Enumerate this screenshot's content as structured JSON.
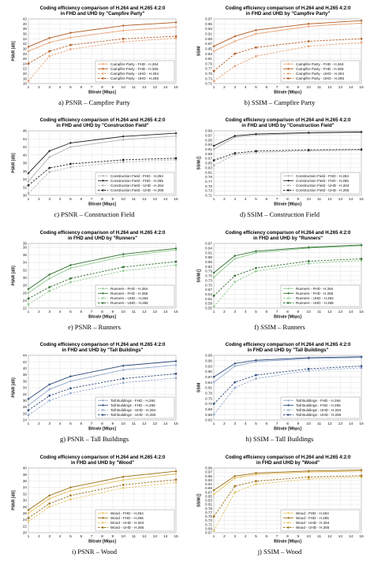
{
  "chart_data": [
    {
      "type": "line",
      "title": "Coding efficiency comparison of H.264 and H.265 4:2:0 in FHD and UHD by \"Campfire Party\"",
      "xlabel": "Bitrate [Mbps]",
      "ylabel": "PSNR [dB]",
      "xlim": [
        1,
        15
      ],
      "ylim": [
        16,
        42
      ],
      "yticks": [
        16,
        18,
        20,
        22,
        24,
        26,
        28,
        30,
        32,
        34,
        36,
        38,
        40,
        42
      ],
      "xticks": [
        1,
        2,
        3,
        4,
        5,
        6,
        7,
        8,
        9,
        10,
        11,
        12,
        13,
        14,
        15
      ],
      "grid": true,
      "legend": "bottom-right",
      "caption": "a) PSNR – Campfire Party",
      "x": [
        1,
        3,
        5,
        10,
        15
      ],
      "series": [
        {
          "name": "Campfire Party - FHD - H.264",
          "values": [
            29.0,
            32.5,
            34.5,
            37.3,
            38.7
          ],
          "color": "#e8a070",
          "dash": false
        },
        {
          "name": "Campfire Party - FHD - H.265",
          "values": [
            30.8,
            34.3,
            36.4,
            39.3,
            40.6
          ],
          "color": "#b35a1f",
          "dash": false
        },
        {
          "name": "Campfire Party - UHD - H.264",
          "values": [
            17.0,
            27.0,
            29.8,
            32.8,
            34.2
          ],
          "color": "#e8a070",
          "dash": true
        },
        {
          "name": "Campfire Party - UHD - H.265",
          "values": [
            24.0,
            29.0,
            31.5,
            34.0,
            35.0
          ],
          "color": "#b35a1f",
          "dash": true
        }
      ]
    },
    {
      "type": "line",
      "title": "Coding efficiency comparison of H.264 and H.265 4:2:0 in FHD and UHD by \"Campfire Party\"",
      "xlabel": "Bitrate [Mbps]",
      "ylabel": "SSIM",
      "xlim": [
        1,
        15
      ],
      "ylim": [
        0.71,
        0.97
      ],
      "yticks": [
        0.71,
        0.73,
        0.75,
        0.77,
        0.79,
        0.81,
        0.83,
        0.85,
        0.87,
        0.89,
        0.91,
        0.93,
        0.95,
        0.97
      ],
      "xticks": [
        1,
        2,
        3,
        4,
        5,
        6,
        7,
        8,
        9,
        10,
        11,
        12,
        13,
        14,
        15
      ],
      "grid": true,
      "legend": "bottom-right",
      "caption": "b) SSIM – Campfire Party",
      "x": [
        1,
        3,
        5,
        10,
        15
      ],
      "series": [
        {
          "name": "Campfire Party - FHD - H.264",
          "values": [
            0.84,
            0.88,
            0.91,
            0.94,
            0.953
          ],
          "color": "#e8a070",
          "dash": false
        },
        {
          "name": "Campfire Party - FHD - H.265",
          "values": [
            0.86,
            0.9,
            0.925,
            0.95,
            0.963
          ],
          "color": "#b35a1f",
          "dash": false
        },
        {
          "name": "Campfire Party - UHD - H.264",
          "values": [
            0.72,
            0.78,
            0.82,
            0.86,
            0.875
          ],
          "color": "#e8a070",
          "dash": true
        },
        {
          "name": "Campfire Party - UHD - H.265",
          "values": [
            0.76,
            0.83,
            0.855,
            0.88,
            0.89
          ],
          "color": "#b35a1f",
          "dash": true
        }
      ]
    },
    {
      "type": "line",
      "title": "Coding efficiency comparison of H.264 and H.265 4:2:0 in FHD and UHD by \"Construction Field\"",
      "xlabel": "Bitrate [Mbps]",
      "ylabel": "PSNR [dB]",
      "xlim": [
        1,
        15
      ],
      "ylim": [
        30,
        46
      ],
      "yticks": [
        30,
        32,
        34,
        36,
        38,
        40,
        42,
        44,
        46
      ],
      "xticks": [
        1,
        2,
        3,
        4,
        5,
        6,
        7,
        8,
        9,
        10,
        11,
        12,
        13,
        14,
        15
      ],
      "grid": true,
      "legend": "bottom-right",
      "caption": "c) PSNR – Construction Field",
      "x": [
        1,
        3,
        5,
        10,
        15
      ],
      "series": [
        {
          "name": "Construction Field - FHD - H.264",
          "values": [
            33.5,
            39.5,
            42.0,
            43.8,
            44.7
          ],
          "color": "#b0b0b0",
          "dash": false
        },
        {
          "name": "Construction Field - FHD - H.265",
          "values": [
            35.5,
            41.0,
            43.0,
            44.6,
            45.4
          ],
          "color": "#202020",
          "dash": false
        },
        {
          "name": "Construction Field - UHD - H.264",
          "values": [
            30.5,
            35.8,
            37.0,
            38.3,
            38.8
          ],
          "color": "#b0b0b0",
          "dash": true
        },
        {
          "name": "Construction Field - UHD - H.265",
          "values": [
            32.5,
            36.8,
            37.8,
            38.8,
            39.2
          ],
          "color": "#202020",
          "dash": true
        }
      ]
    },
    {
      "type": "line",
      "title": "Coding efficiency comparison of H.264 and H.265 4:2:0 in FHD and UHD by \"Construction Field\"",
      "xlabel": "Bitrate [Mbps]",
      "ylabel": "SSIM []",
      "xlim": [
        1,
        15
      ],
      "ylim": [
        0.71,
        0.99
      ],
      "yticks": [
        0.71,
        0.73,
        0.75,
        0.77,
        0.79,
        0.81,
        0.83,
        0.85,
        0.87,
        0.89,
        0.91,
        0.93,
        0.95,
        0.97,
        0.99
      ],
      "xticks": [
        1,
        2,
        3,
        4,
        5,
        6,
        7,
        8,
        9,
        10,
        11,
        12,
        13,
        14,
        15
      ],
      "grid": true,
      "legend": "bottom-right",
      "caption": "d) SSIM – Construction Field",
      "x": [
        1,
        3,
        5,
        10,
        15
      ],
      "series": [
        {
          "name": "Construction Field - FHD - H.264",
          "values": [
            0.91,
            0.962,
            0.972,
            0.979,
            0.982
          ],
          "color": "#b0b0b0",
          "dash": false
        },
        {
          "name": "Construction Field - FHD - H.265",
          "values": [
            0.925,
            0.968,
            0.976,
            0.982,
            0.985
          ],
          "color": "#202020",
          "dash": false
        },
        {
          "name": "Construction Field - UHD - H.264",
          "values": [
            0.84,
            0.886,
            0.896,
            0.903,
            0.906
          ],
          "color": "#b0b0b0",
          "dash": true
        },
        {
          "name": "Construction Field - UHD - H.265",
          "values": [
            0.862,
            0.893,
            0.902,
            0.907,
            0.909
          ],
          "color": "#202020",
          "dash": true
        }
      ]
    },
    {
      "type": "line",
      "title": "Coding efficiency comparison of H.264 and H.265 4:2:0 in FHD and UHD by \"Runners\"",
      "xlabel": "Bitrate [Mbps]",
      "ylabel": "PSNR [dB]",
      "xlim": [
        1,
        15
      ],
      "ylim": [
        22,
        39
      ],
      "yticks": [
        22,
        24,
        26,
        28,
        30,
        32,
        34,
        36,
        38,
        39
      ],
      "xticks": [
        1,
        2,
        3,
        4,
        5,
        6,
        7,
        8,
        9,
        10,
        11,
        12,
        13,
        14,
        15
      ],
      "grid": true,
      "legend": "bottom-right",
      "caption": "e) PSNR – Runners",
      "x": [
        1,
        3,
        5,
        10,
        15
      ],
      "series": [
        {
          "name": "Runners - FHD - H.264",
          "values": [
            26.0,
            29.8,
            32.5,
            35.6,
            37.3
          ],
          "color": "#8cc98c",
          "dash": false
        },
        {
          "name": "Runners - FHD - H.265",
          "values": [
            27.0,
            30.8,
            33.3,
            36.2,
            37.7
          ],
          "color": "#2f6e2f",
          "dash": false
        },
        {
          "name": "Runners - UHD - H.264",
          "values": [
            23.0,
            26.5,
            28.8,
            31.8,
            33.3
          ],
          "color": "#8cc98c",
          "dash": true
        },
        {
          "name": "Runners - UHD - H.265",
          "values": [
            24.5,
            27.5,
            29.8,
            32.8,
            34.2
          ],
          "color": "#2f6e2f",
          "dash": true
        }
      ]
    },
    {
      "type": "line",
      "title": "Coding efficiency comparison of H.264 and H.265 4:2:0 in FHD and UHD by \"Runners\"",
      "xlabel": "Bitrate [Mbps]",
      "ylabel": "SSIM []",
      "xlim": [
        1,
        15
      ],
      "ylim": [
        0.55,
        0.97
      ],
      "yticks": [
        0.55,
        0.58,
        0.61,
        0.64,
        0.67,
        0.7,
        0.73,
        0.76,
        0.79,
        0.82,
        0.85,
        0.88,
        0.91,
        0.94,
        0.97
      ],
      "xticks": [
        1,
        2,
        3,
        4,
        5,
        6,
        7,
        8,
        9,
        10,
        11,
        12,
        13,
        14,
        15
      ],
      "grid": true,
      "legend": "bottom-right",
      "caption": "f) SSIM – Runners",
      "x": [
        1,
        3,
        5,
        10,
        15
      ],
      "series": [
        {
          "name": "Runners - FHD - H.264",
          "values": [
            0.75,
            0.87,
            0.91,
            0.94,
            0.955
          ],
          "color": "#8cc98c",
          "dash": false
        },
        {
          "name": "Runners - FHD - H.265",
          "values": [
            0.78,
            0.89,
            0.92,
            0.945,
            0.96
          ],
          "color": "#2f6e2f",
          "dash": false
        },
        {
          "name": "Runners - UHD - H.264",
          "values": [
            0.56,
            0.72,
            0.79,
            0.84,
            0.86
          ],
          "color": "#8cc98c",
          "dash": true
        },
        {
          "name": "Runners - UHD - H.265",
          "values": [
            0.63,
            0.76,
            0.81,
            0.855,
            0.87
          ],
          "color": "#2f6e2f",
          "dash": true
        }
      ]
    },
    {
      "type": "line",
      "title": "Coding efficiency comparison of H.264 and H.265 4:2:0 in FHD and UHD by \"Tall Buildings\"",
      "xlabel": "Bitrate [Mbps]",
      "ylabel": "PSNR [dB]",
      "xlim": [
        1,
        15
      ],
      "ylim": [
        24,
        44
      ],
      "yticks": [
        24,
        26,
        28,
        30,
        32,
        34,
        36,
        38,
        40,
        42,
        44
      ],
      "xticks": [
        1,
        2,
        3,
        4,
        5,
        6,
        7,
        8,
        9,
        10,
        11,
        12,
        13,
        14,
        15
      ],
      "grid": true,
      "legend": "bottom-right",
      "caption": "g) PSNR – Tall Buildings",
      "x": [
        1,
        3,
        5,
        10,
        15
      ],
      "series": [
        {
          "name": "Tall Buildings - FHD - H.264",
          "values": [
            28.5,
            33.5,
            36.0,
            39.5,
            41.0
          ],
          "color": "#8fa8cc",
          "dash": false
        },
        {
          "name": "Tall Buildings - FHD - H.265",
          "values": [
            30.5,
            35.0,
            37.5,
            40.8,
            42.2
          ],
          "color": "#2c4a7a",
          "dash": false
        },
        {
          "name": "Tall Buildings - UHD - H.264",
          "values": [
            25.5,
            30.0,
            32.3,
            35.5,
            37.0
          ],
          "color": "#8fa8cc",
          "dash": true
        },
        {
          "name": "Tall Buildings - UHD - H.265",
          "values": [
            27.0,
            31.5,
            33.8,
            36.8,
            38.3
          ],
          "color": "#2c4a7a",
          "dash": true
        }
      ]
    },
    {
      "type": "line",
      "title": "Coding efficiency comparison of H.264 and H.265 4:2:0 in FHD and UHD by \"Tall Buildings\"",
      "xlabel": "Bitrate [Mbps]",
      "ylabel": "SSIM",
      "xlim": [
        1,
        15
      ],
      "ylim": [
        0.63,
        0.99
      ],
      "yticks": [
        0.63,
        0.66,
        0.69,
        0.72,
        0.75,
        0.78,
        0.81,
        0.84,
        0.87,
        0.9,
        0.93,
        0.96,
        0.99
      ],
      "xticks": [
        1,
        2,
        3,
        4,
        5,
        6,
        7,
        8,
        9,
        10,
        11,
        12,
        13,
        14,
        15
      ],
      "grid": true,
      "legend": "bottom-right",
      "caption": "h) SSIM – Tall Buildings",
      "x": [
        1,
        3,
        5,
        10,
        15
      ],
      "series": [
        {
          "name": "Tall Buildings - FHD - H.264",
          "values": [
            0.84,
            0.93,
            0.955,
            0.972,
            0.978
          ],
          "color": "#8fa8cc",
          "dash": false
        },
        {
          "name": "Tall Buildings - FHD - H.265",
          "values": [
            0.87,
            0.945,
            0.963,
            0.977,
            0.982
          ],
          "color": "#2c4a7a",
          "dash": false
        },
        {
          "name": "Tall Buildings - UHD - H.264",
          "values": [
            0.66,
            0.81,
            0.86,
            0.905,
            0.92
          ],
          "color": "#8fa8cc",
          "dash": true
        },
        {
          "name": "Tall Buildings - UHD - H.265",
          "values": [
            0.72,
            0.84,
            0.88,
            0.915,
            0.93
          ],
          "color": "#2c4a7a",
          "dash": true
        }
      ]
    },
    {
      "type": "line",
      "title": "Coding efficiency comparison of H.264 and H.265 4:2:0 in FHD and UHD by \"Wood\"",
      "xlabel": "Bitrate [Mbps]",
      "ylabel": "PSNR [dB]",
      "xlim": [
        1,
        15
      ],
      "ylim": [
        20,
        40
      ],
      "yticks": [
        20,
        22,
        24,
        26,
        28,
        30,
        32,
        34,
        36,
        38,
        40
      ],
      "xticks": [
        1,
        2,
        3,
        4,
        5,
        6,
        7,
        8,
        9,
        10,
        11,
        12,
        13,
        14,
        15
      ],
      "grid": true,
      "legend": "bottom-right",
      "caption": "i) PSNR – Wood",
      "x": [
        1,
        3,
        5,
        10,
        15
      ],
      "series": [
        {
          "name": "Wood - FHD - H.264",
          "values": [
            26.0,
            30.5,
            33.0,
            36.3,
            38.2
          ],
          "color": "#e6c060",
          "dash": false
        },
        {
          "name": "Wood - FHD - H.265",
          "values": [
            27.0,
            31.5,
            34.0,
            37.3,
            39.0
          ],
          "color": "#9a6d12",
          "dash": false
        },
        {
          "name": "Wood - UHD - H.264",
          "values": [
            23.5,
            28.0,
            30.3,
            33.8,
            35.5
          ],
          "color": "#e6c060",
          "dash": true
        },
        {
          "name": "Wood - UHD - H.265",
          "values": [
            24.5,
            29.0,
            31.5,
            34.8,
            36.4
          ],
          "color": "#9a6d12",
          "dash": true
        }
      ]
    },
    {
      "type": "line",
      "title": "Coding efficiency comparison of H.264 and H.265 4:2:0 in FHD and UHD by \"Wood\"",
      "xlabel": "Bitrate [Mbps]",
      "ylabel": "SSIM []",
      "xlim": [
        1,
        15
      ],
      "ylim": [
        0.67,
        0.99
      ],
      "yticks": [
        0.67,
        0.69,
        0.71,
        0.73,
        0.75,
        0.77,
        0.79,
        0.81,
        0.83,
        0.85,
        0.87,
        0.89,
        0.91,
        0.93,
        0.95,
        0.97,
        0.99
      ],
      "xticks": [
        1,
        2,
        3,
        4,
        5,
        6,
        7,
        8,
        9,
        10,
        11,
        12,
        13,
        14,
        15
      ],
      "grid": true,
      "legend": "bottom-right",
      "caption": "j) SSIM – Wood",
      "x": [
        1,
        3,
        5,
        10,
        15
      ],
      "series": [
        {
          "name": "Wood - FHD - H.264",
          "values": [
            0.86,
            0.94,
            0.958,
            0.97,
            0.975
          ],
          "color": "#e6c060",
          "dash": false
        },
        {
          "name": "Wood - FHD - H.265",
          "values": [
            0.88,
            0.95,
            0.965,
            0.975,
            0.98
          ],
          "color": "#9a6d12",
          "dash": false
        },
        {
          "name": "Wood - UHD - H.264",
          "values": [
            0.68,
            0.87,
            0.91,
            0.935,
            0.945
          ],
          "color": "#e6c060",
          "dash": true
        },
        {
          "name": "Wood - UHD - H.265",
          "values": [
            0.75,
            0.9,
            0.925,
            0.945,
            0.952
          ],
          "color": "#9a6d12",
          "dash": true
        }
      ]
    }
  ]
}
